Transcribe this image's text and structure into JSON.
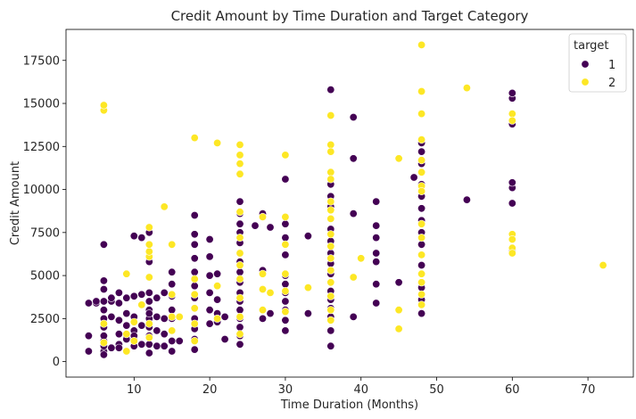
{
  "chart_data": {
    "type": "scatter",
    "title": "Credit Amount by Time Duration and Target Category",
    "xlabel": "Time Duration (Months)",
    "ylabel": "Credit Amount",
    "xlim": [
      1,
      76
    ],
    "ylim": [
      -900,
      19300
    ],
    "xticks": [
      10,
      20,
      30,
      40,
      50,
      60,
      70
    ],
    "yticks": [
      0,
      2500,
      5000,
      7500,
      10000,
      12500,
      15000,
      17500
    ],
    "grid": false,
    "legend": {
      "title": "target",
      "position": "top-right",
      "entries": [
        "1",
        "2"
      ]
    },
    "colors": {
      "1": "#440154",
      "2": "#fde725"
    },
    "series": [
      {
        "name": "1",
        "points": [
          [
            4,
            1500
          ],
          [
            4,
            3400
          ],
          [
            4,
            600
          ],
          [
            5,
            3400
          ],
          [
            5,
            3500
          ],
          [
            6,
            600
          ],
          [
            6,
            900
          ],
          [
            6,
            1200
          ],
          [
            6,
            1500
          ],
          [
            6,
            2000
          ],
          [
            6,
            2500
          ],
          [
            6,
            3000
          ],
          [
            6,
            3500
          ],
          [
            6,
            4200
          ],
          [
            6,
            4700
          ],
          [
            6,
            6800
          ],
          [
            6,
            400
          ],
          [
            7,
            800
          ],
          [
            7,
            2600
          ],
          [
            7,
            3500
          ],
          [
            7,
            3700
          ],
          [
            8,
            1000
          ],
          [
            8,
            1600
          ],
          [
            8,
            2400
          ],
          [
            8,
            3400
          ],
          [
            8,
            4000
          ],
          [
            8,
            800
          ],
          [
            9,
            600
          ],
          [
            9,
            1400
          ],
          [
            9,
            2100
          ],
          [
            9,
            2800
          ],
          [
            9,
            3700
          ],
          [
            9,
            1300
          ],
          [
            10,
            900
          ],
          [
            10,
            1300
          ],
          [
            10,
            1800
          ],
          [
            10,
            2600
          ],
          [
            10,
            3800
          ],
          [
            10,
            7300
          ],
          [
            10,
            1500
          ],
          [
            11,
            1000
          ],
          [
            11,
            2100
          ],
          [
            11,
            3300
          ],
          [
            11,
            7200
          ],
          [
            11,
            3900
          ],
          [
            12,
            500
          ],
          [
            12,
            1000
          ],
          [
            12,
            1500
          ],
          [
            12,
            2000
          ],
          [
            12,
            2500
          ],
          [
            12,
            3000
          ],
          [
            12,
            3500
          ],
          [
            12,
            4000
          ],
          [
            12,
            7500
          ],
          [
            12,
            6800
          ],
          [
            12,
            5800
          ],
          [
            12,
            2800
          ],
          [
            13,
            900
          ],
          [
            13,
            1800
          ],
          [
            13,
            2600
          ],
          [
            13,
            3700
          ],
          [
            14,
            900
          ],
          [
            14,
            1600
          ],
          [
            14,
            2500
          ],
          [
            14,
            4000
          ],
          [
            15,
            600
          ],
          [
            15,
            1200
          ],
          [
            15,
            1800
          ],
          [
            15,
            2500
          ],
          [
            15,
            3000
          ],
          [
            15,
            3800
          ],
          [
            15,
            4500
          ],
          [
            15,
            5200
          ],
          [
            16,
            1200
          ],
          [
            16,
            2600
          ],
          [
            18,
            700
          ],
          [
            18,
            1300
          ],
          [
            18,
            1900
          ],
          [
            18,
            2500
          ],
          [
            18,
            3100
          ],
          [
            18,
            3700
          ],
          [
            18,
            4400
          ],
          [
            18,
            5200
          ],
          [
            18,
            6000
          ],
          [
            18,
            6800
          ],
          [
            18,
            7400
          ],
          [
            18,
            8500
          ],
          [
            20,
            2200
          ],
          [
            20,
            3000
          ],
          [
            20,
            4000
          ],
          [
            20,
            5000
          ],
          [
            20,
            6100
          ],
          [
            20,
            7100
          ],
          [
            21,
            2300
          ],
          [
            21,
            2800
          ],
          [
            21,
            3600
          ],
          [
            21,
            5100
          ],
          [
            22,
            1300
          ],
          [
            22,
            2600
          ],
          [
            24,
            1000
          ],
          [
            24,
            1500
          ],
          [
            24,
            2000
          ],
          [
            24,
            2500
          ],
          [
            24,
            3000
          ],
          [
            24,
            3500
          ],
          [
            24,
            4000
          ],
          [
            24,
            4600
          ],
          [
            24,
            5200
          ],
          [
            24,
            5800
          ],
          [
            24,
            6300
          ],
          [
            24,
            6900
          ],
          [
            24,
            7500
          ],
          [
            24,
            8000
          ],
          [
            24,
            8600
          ],
          [
            24,
            9300
          ],
          [
            26,
            7900
          ],
          [
            27,
            2500
          ],
          [
            27,
            5300
          ],
          [
            27,
            8600
          ],
          [
            28,
            2800
          ],
          [
            28,
            7800
          ],
          [
            30,
            1800
          ],
          [
            30,
            2400
          ],
          [
            30,
            3000
          ],
          [
            30,
            3500
          ],
          [
            30,
            4000
          ],
          [
            30,
            4500
          ],
          [
            30,
            5000
          ],
          [
            30,
            6200
          ],
          [
            30,
            7200
          ],
          [
            30,
            8000
          ],
          [
            30,
            10600
          ],
          [
            33,
            2800
          ],
          [
            33,
            7300
          ],
          [
            36,
            900
          ],
          [
            36,
            1800
          ],
          [
            36,
            2600
          ],
          [
            36,
            3100
          ],
          [
            36,
            3600
          ],
          [
            36,
            4100
          ],
          [
            36,
            4600
          ],
          [
            36,
            5100
          ],
          [
            36,
            5700
          ],
          [
            36,
            6300
          ],
          [
            36,
            7000
          ],
          [
            36,
            7700
          ],
          [
            36,
            8300
          ],
          [
            36,
            9000
          ],
          [
            36,
            9600
          ],
          [
            36,
            10300
          ],
          [
            36,
            11000
          ],
          [
            36,
            15800
          ],
          [
            39,
            2600
          ],
          [
            39,
            8600
          ],
          [
            39,
            11800
          ],
          [
            39,
            14200
          ],
          [
            42,
            3400
          ],
          [
            42,
            4500
          ],
          [
            42,
            5800
          ],
          [
            42,
            6300
          ],
          [
            42,
            7200
          ],
          [
            42,
            7900
          ],
          [
            42,
            9300
          ],
          [
            45,
            4600
          ],
          [
            47,
            10700
          ],
          [
            48,
            2800
          ],
          [
            48,
            3600
          ],
          [
            48,
            4300
          ],
          [
            48,
            5600
          ],
          [
            48,
            6200
          ],
          [
            48,
            6800
          ],
          [
            48,
            7500
          ],
          [
            48,
            8200
          ],
          [
            48,
            8900
          ],
          [
            48,
            9600
          ],
          [
            48,
            10300
          ],
          [
            48,
            11500
          ],
          [
            48,
            12200
          ],
          [
            48,
            12700
          ],
          [
            54,
            9400
          ],
          [
            60,
            6500
          ],
          [
            60,
            9200
          ],
          [
            60,
            10100
          ],
          [
            60,
            10400
          ],
          [
            60,
            13800
          ],
          [
            60,
            15300
          ],
          [
            60,
            15600
          ]
        ]
      },
      {
        "name": "2",
        "points": [
          [
            6,
            14600
          ],
          [
            6,
            14900
          ],
          [
            6,
            2200
          ],
          [
            6,
            1100
          ],
          [
            9,
            5100
          ],
          [
            9,
            1600
          ],
          [
            9,
            600
          ],
          [
            10,
            2300
          ],
          [
            10,
            1200
          ],
          [
            11,
            3300
          ],
          [
            12,
            4900
          ],
          [
            12,
            6100
          ],
          [
            12,
            6400
          ],
          [
            12,
            6800
          ],
          [
            12,
            7800
          ],
          [
            12,
            2200
          ],
          [
            12,
            1400
          ],
          [
            14,
            9000
          ],
          [
            15,
            6800
          ],
          [
            15,
            3900
          ],
          [
            15,
            2600
          ],
          [
            15,
            1800
          ],
          [
            16,
            2600
          ],
          [
            18,
            13000
          ],
          [
            18,
            4800
          ],
          [
            18,
            3900
          ],
          [
            18,
            3100
          ],
          [
            18,
            2200
          ],
          [
            18,
            1200
          ],
          [
            21,
            12700
          ],
          [
            21,
            4400
          ],
          [
            21,
            2500
          ],
          [
            24,
            12600
          ],
          [
            24,
            12000
          ],
          [
            24,
            11500
          ],
          [
            24,
            10900
          ],
          [
            24,
            8700
          ],
          [
            24,
            7200
          ],
          [
            24,
            6300
          ],
          [
            24,
            5600
          ],
          [
            24,
            4800
          ],
          [
            24,
            3700
          ],
          [
            24,
            2600
          ],
          [
            24,
            1600
          ],
          [
            27,
            8400
          ],
          [
            27,
            5100
          ],
          [
            27,
            4200
          ],
          [
            27,
            3000
          ],
          [
            28,
            4000
          ],
          [
            30,
            12000
          ],
          [
            30,
            8400
          ],
          [
            30,
            6800
          ],
          [
            30,
            5100
          ],
          [
            30,
            4100
          ],
          [
            30,
            2900
          ],
          [
            33,
            4300
          ],
          [
            36,
            14300
          ],
          [
            36,
            12600
          ],
          [
            36,
            12200
          ],
          [
            36,
            11000
          ],
          [
            36,
            10600
          ],
          [
            36,
            9300
          ],
          [
            36,
            8800
          ],
          [
            36,
            8300
          ],
          [
            36,
            7400
          ],
          [
            36,
            6700
          ],
          [
            36,
            6000
          ],
          [
            36,
            5300
          ],
          [
            36,
            4600
          ],
          [
            36,
            3800
          ],
          [
            36,
            3000
          ],
          [
            36,
            2400
          ],
          [
            39,
            4900
          ],
          [
            40,
            6000
          ],
          [
            45,
            11800
          ],
          [
            45,
            3000
          ],
          [
            45,
            1900
          ],
          [
            48,
            18400
          ],
          [
            48,
            15700
          ],
          [
            48,
            14400
          ],
          [
            48,
            12900
          ],
          [
            48,
            11700
          ],
          [
            48,
            11000
          ],
          [
            48,
            10200
          ],
          [
            48,
            9900
          ],
          [
            48,
            8000
          ],
          [
            48,
            7200
          ],
          [
            48,
            6200
          ],
          [
            48,
            5100
          ],
          [
            48,
            4600
          ],
          [
            48,
            3900
          ],
          [
            48,
            3300
          ],
          [
            54,
            15900
          ],
          [
            60,
            14400
          ],
          [
            60,
            14000
          ],
          [
            60,
            7400
          ],
          [
            60,
            7100
          ],
          [
            60,
            6600
          ],
          [
            60,
            6300
          ],
          [
            72,
            5600
          ]
        ]
      }
    ]
  }
}
